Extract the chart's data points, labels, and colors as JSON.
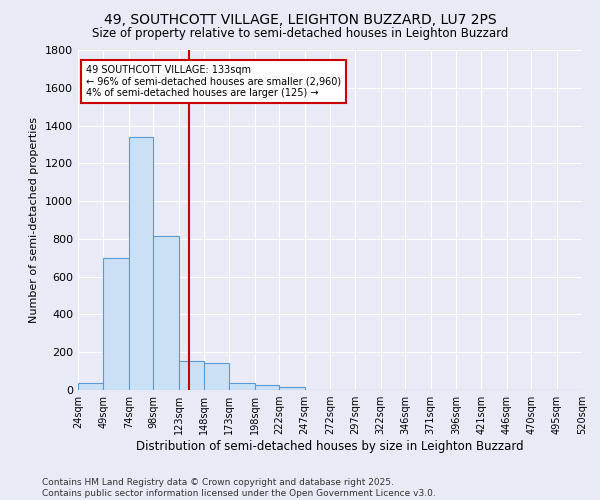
{
  "title": "49, SOUTHCOTT VILLAGE, LEIGHTON BUZZARD, LU7 2PS",
  "subtitle": "Size of property relative to semi-detached houses in Leighton Buzzard",
  "xlabel": "Distribution of semi-detached houses by size in Leighton Buzzard",
  "ylabel": "Number of semi-detached properties",
  "footer_line1": "Contains HM Land Registry data © Crown copyright and database right 2025.",
  "footer_line2": "Contains public sector information licensed under the Open Government Licence v3.0.",
  "bin_edges": [
    24,
    49,
    74,
    98,
    123,
    148,
    173,
    198,
    222,
    247,
    272,
    297,
    322,
    346,
    371,
    396,
    421,
    446,
    470,
    495,
    520
  ],
  "bin_labels": [
    "24sqm",
    "49sqm",
    "74sqm",
    "98sqm",
    "123sqm",
    "148sqm",
    "173sqm",
    "198sqm",
    "222sqm",
    "247sqm",
    "272sqm",
    "297sqm",
    "322sqm",
    "346sqm",
    "371sqm",
    "396sqm",
    "421sqm",
    "446sqm",
    "470sqm",
    "495sqm",
    "520sqm"
  ],
  "counts": [
    35,
    700,
    1340,
    815,
    155,
    145,
    35,
    25,
    15,
    0,
    0,
    0,
    0,
    0,
    0,
    0,
    0,
    0,
    0,
    0
  ],
  "property_size": 133,
  "annotation_title": "49 SOUTHCOTT VILLAGE: 133sqm",
  "annotation_line2": "← 96% of semi-detached houses are smaller (2,960)",
  "annotation_line3": "4% of semi-detached houses are larger (125) →",
  "bar_color": "#cce0f5",
  "bar_edge_color": "#5b9bd5",
  "vline_color": "#cc0000",
  "annotation_box_edge": "#cc0000",
  "background_color": "#e8eaf6",
  "ylim": [
    0,
    1800
  ],
  "yticks": [
    0,
    200,
    400,
    600,
    800,
    1000,
    1200,
    1400,
    1600,
    1800
  ]
}
